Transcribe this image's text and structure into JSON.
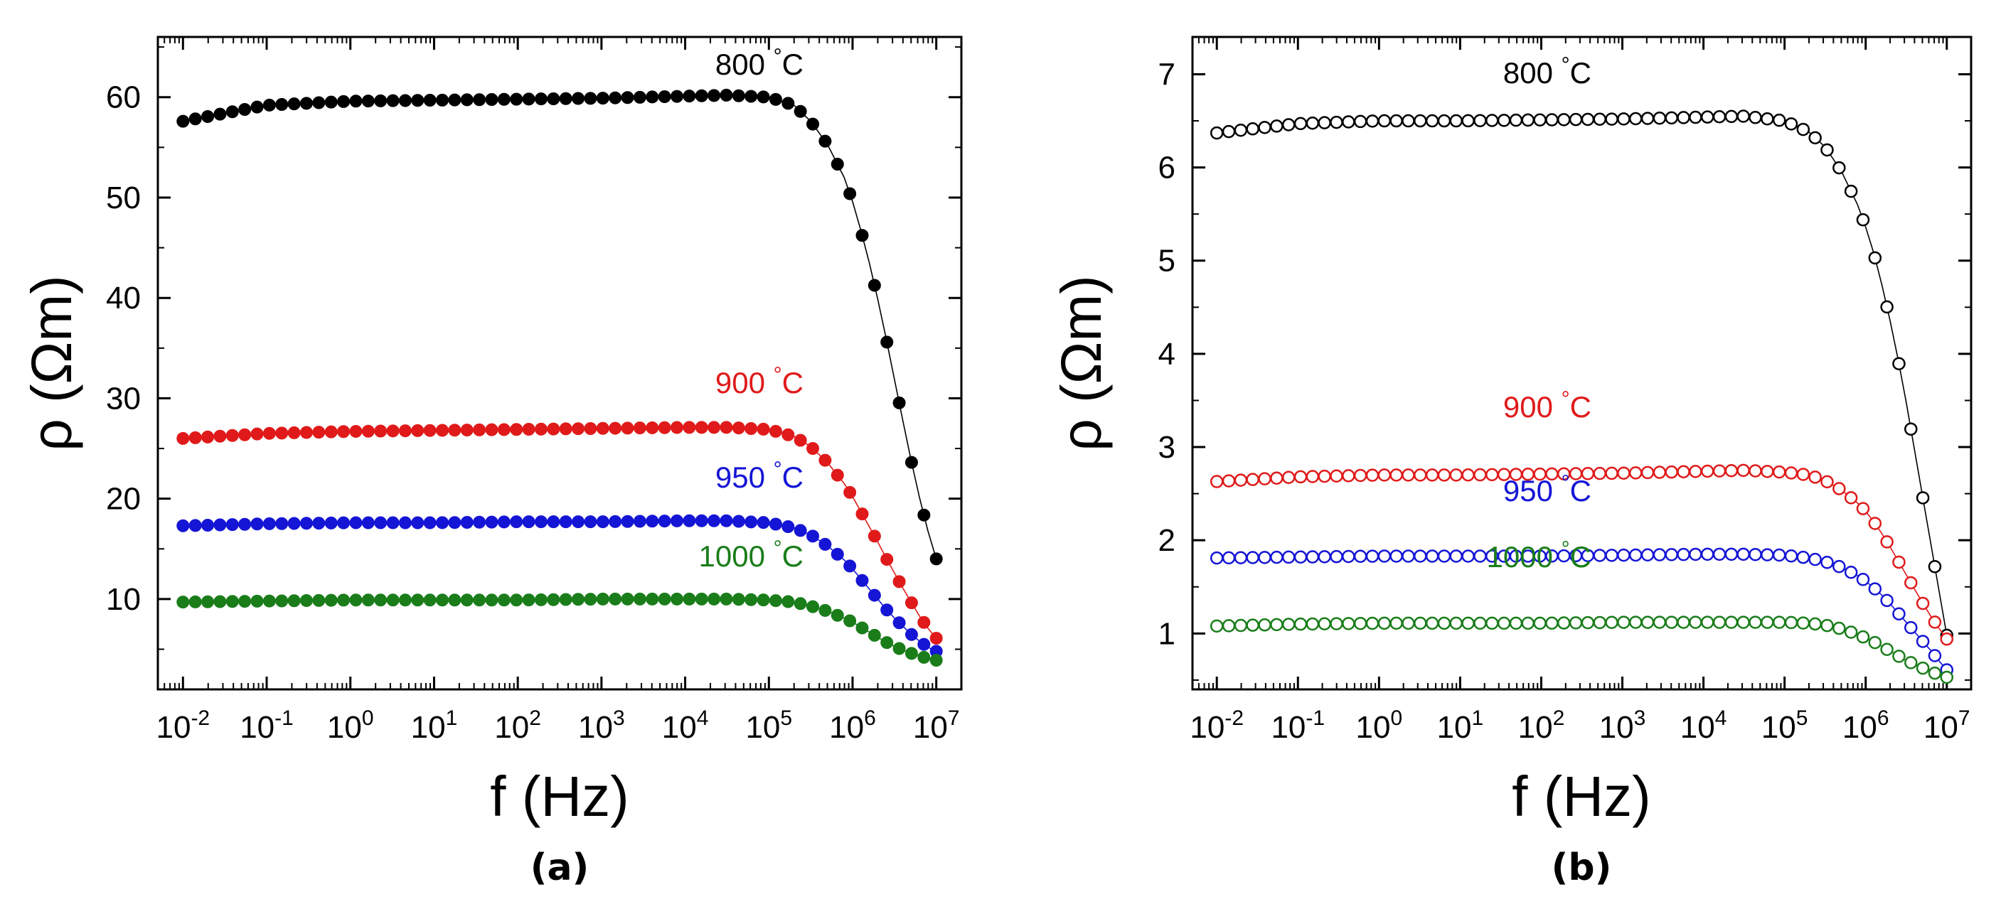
{
  "colors": {
    "black": "#000000",
    "red": "#e01a1a",
    "blue": "#1515d6",
    "green": "#1a7d1a"
  },
  "chart_data": [
    {
      "id": "a",
      "type": "scatter",
      "panel_label": "(a)",
      "marker": "filled-circle",
      "xlabel": "f (Hz)",
      "ylabel": "ρ (Ωm)",
      "xscale": "log",
      "xlim_exp": [
        -2.3,
        7.3
      ],
      "ylim": [
        1,
        66
      ],
      "x_tick_exponents": [
        -2,
        -1,
        0,
        1,
        2,
        3,
        4,
        5,
        6,
        7
      ],
      "x_tick_labels": [
        "10-2",
        "10-1",
        "100",
        "101",
        "102",
        "103",
        "104",
        "105",
        "106",
        "107"
      ],
      "y_ticks": [
        10,
        20,
        30,
        40,
        50,
        60
      ],
      "y_tick_labels": [
        "10",
        "20",
        "30",
        "40",
        "50",
        "60"
      ],
      "series": [
        {
          "name": "800 °C",
          "temp": "800",
          "unit": "°C",
          "color": "#000000",
          "x_exp": [
            -2,
            -1,
            0,
            1,
            2,
            3,
            4,
            4.5,
            5,
            5.3,
            5.5,
            5.7,
            5.9,
            6.0,
            6.1,
            6.2,
            6.3,
            6.4,
            6.5,
            6.6,
            6.7,
            6.8,
            6.9,
            7.0
          ],
          "y": [
            57.6,
            59.2,
            59.6,
            59.7,
            59.8,
            59.9,
            60.1,
            60.2,
            60.0,
            59.2,
            57.6,
            55.3,
            52.0,
            49.6,
            46.7,
            43.5,
            39.9,
            36.0,
            31.9,
            27.8,
            23.8,
            20.1,
            16.8,
            14.0
          ]
        },
        {
          "name": "900 °C",
          "temp": "900",
          "unit": "°C",
          "color": "#e01a1a",
          "x_exp": [
            -2,
            -1,
            0,
            1,
            2,
            3,
            4,
            4.5,
            5,
            5.3,
            5.5,
            5.7,
            5.9,
            6.0,
            6.1,
            6.2,
            6.3,
            6.4,
            6.5,
            6.6,
            6.7,
            6.8,
            6.9,
            7.0
          ],
          "y": [
            26.0,
            26.5,
            26.7,
            26.8,
            26.9,
            27.0,
            27.1,
            27.1,
            26.9,
            26.2,
            25.2,
            23.6,
            21.5,
            20.2,
            18.7,
            17.2,
            15.7,
            14.1,
            12.6,
            11.1,
            9.7,
            8.3,
            7.1,
            6.1
          ]
        },
        {
          "name": "950 °C",
          "temp": "950",
          "unit": "°C",
          "color": "#1515d6",
          "x_exp": [
            -2,
            -1,
            0,
            1,
            2,
            3,
            4,
            4.5,
            5,
            5.3,
            5.5,
            5.7,
            5.9,
            6.0,
            6.1,
            6.2,
            6.3,
            6.4,
            6.5,
            6.6,
            6.7,
            6.8,
            6.9,
            7.0
          ],
          "y": [
            17.3,
            17.5,
            17.6,
            17.6,
            17.7,
            17.7,
            17.8,
            17.8,
            17.6,
            17.1,
            16.4,
            15.3,
            13.9,
            13.0,
            12.0,
            11.0,
            10.0,
            9.0,
            8.1,
            7.3,
            6.5,
            5.8,
            5.2,
            4.8
          ]
        },
        {
          "name": "1000 °C",
          "temp": "1000",
          "unit": "°C",
          "color": "#1a7d1a",
          "x_exp": [
            -2,
            -1,
            0,
            1,
            2,
            3,
            4,
            4.5,
            5,
            5.3,
            5.5,
            5.7,
            5.9,
            6.0,
            6.1,
            6.2,
            6.3,
            6.4,
            6.5,
            6.6,
            6.7,
            6.8,
            6.9,
            7.0
          ],
          "y": [
            9.7,
            9.8,
            9.9,
            9.9,
            9.9,
            10.0,
            10.0,
            10.0,
            9.9,
            9.7,
            9.3,
            8.8,
            8.1,
            7.7,
            7.2,
            6.7,
            6.2,
            5.7,
            5.3,
            4.9,
            4.6,
            4.3,
            4.1,
            3.9
          ]
        }
      ]
    },
    {
      "id": "b",
      "type": "scatter",
      "panel_label": "(b)",
      "marker": "open-circle",
      "xlabel": "f (Hz)",
      "ylabel": "ρ (Ωm)",
      "xscale": "log",
      "xlim_exp": [
        -2.3,
        7.3
      ],
      "ylim": [
        0.4,
        7.4
      ],
      "x_tick_exponents": [
        -2,
        -1,
        0,
        1,
        2,
        3,
        4,
        5,
        6,
        7
      ],
      "x_tick_labels": [
        "10-2",
        "10-1",
        "100",
        "101",
        "102",
        "103",
        "104",
        "105",
        "106",
        "107"
      ],
      "y_ticks": [
        1,
        2,
        3,
        4,
        5,
        6,
        7
      ],
      "y_tick_labels": [
        "1",
        "2",
        "3",
        "4",
        "5",
        "6",
        "7"
      ],
      "series": [
        {
          "name": "800 °C",
          "temp": "800",
          "unit": "°C",
          "color": "#000000",
          "x_exp": [
            -2,
            -1,
            0,
            1,
            2,
            3,
            4,
            4.5,
            5,
            5.3,
            5.5,
            5.7,
            5.9,
            6.0,
            6.1,
            6.2,
            6.3,
            6.4,
            6.5,
            6.6,
            6.7,
            6.8,
            6.9,
            7.0
          ],
          "y": [
            6.37,
            6.47,
            6.5,
            6.5,
            6.51,
            6.52,
            6.54,
            6.55,
            6.5,
            6.38,
            6.22,
            5.96,
            5.6,
            5.36,
            5.08,
            4.74,
            4.36,
            3.94,
            3.48,
            2.98,
            2.48,
            1.98,
            1.48,
            0.98
          ]
        },
        {
          "name": "900 °C",
          "temp": "900",
          "unit": "°C",
          "color": "#e01a1a",
          "x_exp": [
            -2,
            -1,
            0,
            1,
            2,
            3,
            4,
            4.5,
            5,
            5.3,
            5.5,
            5.7,
            5.9,
            6.0,
            6.1,
            6.2,
            6.3,
            6.4,
            6.5,
            6.6,
            6.7,
            6.8,
            6.9,
            7.0
          ],
          "y": [
            2.63,
            2.68,
            2.7,
            2.7,
            2.71,
            2.72,
            2.74,
            2.75,
            2.73,
            2.7,
            2.64,
            2.54,
            2.4,
            2.31,
            2.2,
            2.07,
            1.93,
            1.78,
            1.63,
            1.48,
            1.33,
            1.19,
            1.06,
            0.94
          ]
        },
        {
          "name": "950 °C",
          "temp": "950",
          "unit": "°C",
          "color": "#1515d6",
          "x_exp": [
            -2,
            -1,
            0,
            1,
            2,
            3,
            4,
            4.5,
            5,
            5.3,
            5.5,
            5.7,
            5.9,
            6.0,
            6.1,
            6.2,
            6.3,
            6.4,
            6.5,
            6.6,
            6.7,
            6.8,
            6.9,
            7.0
          ],
          "y": [
            1.81,
            1.82,
            1.83,
            1.83,
            1.83,
            1.84,
            1.85,
            1.85,
            1.84,
            1.81,
            1.77,
            1.71,
            1.62,
            1.56,
            1.49,
            1.41,
            1.32,
            1.22,
            1.12,
            1.02,
            0.92,
            0.82,
            0.71,
            0.61
          ]
        },
        {
          "name": "1000 °C",
          "temp": "1000",
          "unit": "°C",
          "color": "#1a7d1a",
          "x_exp": [
            -2,
            -1,
            0,
            1,
            2,
            3,
            4,
            4.5,
            5,
            5.3,
            5.5,
            5.7,
            5.9,
            6.0,
            6.1,
            6.2,
            6.3,
            6.4,
            6.5,
            6.6,
            6.7,
            6.8,
            6.9,
            7.0
          ],
          "y": [
            1.08,
            1.1,
            1.11,
            1.11,
            1.11,
            1.12,
            1.12,
            1.12,
            1.12,
            1.11,
            1.09,
            1.05,
            0.99,
            0.95,
            0.91,
            0.86,
            0.81,
            0.76,
            0.71,
            0.67,
            0.63,
            0.59,
            0.56,
            0.53
          ]
        }
      ]
    }
  ]
}
